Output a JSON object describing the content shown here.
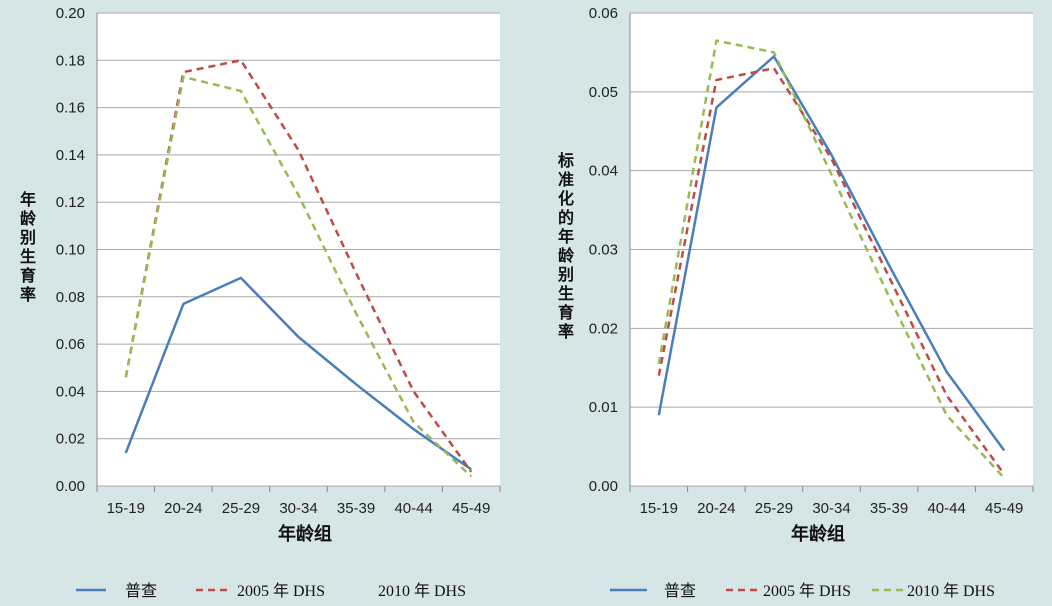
{
  "chart_data": [
    {
      "type": "line",
      "categories": [
        "15-19",
        "20-24",
        "25-29",
        "30-34",
        "35-39",
        "40-44",
        "45-49"
      ],
      "ylim": [
        0,
        0.2
      ],
      "yticks": [
        "0.00",
        "0.02",
        "0.04",
        "0.06",
        "0.08",
        "0.10",
        "0.12",
        "0.14",
        "0.16",
        "0.18",
        "0.20"
      ],
      "xlabel": "年龄组",
      "ylabel": "年龄别生育率",
      "grid": true,
      "legend_position": "bottom",
      "series": [
        {
          "name": "普查",
          "color": "#4a7ebb",
          "dash": "solid",
          "values": [
            0.014,
            0.077,
            0.088,
            0.063,
            0.043,
            0.024,
            0.007
          ]
        },
        {
          "name": "2005 年 DHS",
          "color": "#be4b48",
          "dash": "dashed",
          "values": [
            0.046,
            0.175,
            0.18,
            0.142,
            0.09,
            0.04,
            0.006
          ]
        },
        {
          "name": "2010 年 DHS",
          "color": "#98b954",
          "dash": "dashed",
          "values": [
            0.046,
            0.173,
            0.167,
            0.123,
            0.073,
            0.027,
            0.004
          ]
        }
      ]
    },
    {
      "type": "line",
      "categories": [
        "15-19",
        "20-24",
        "25-29",
        "30-34",
        "35-39",
        "40-44",
        "45-49"
      ],
      "ylim": [
        0,
        0.06
      ],
      "yticks": [
        "0.00",
        "0.01",
        "0.02",
        "0.03",
        "0.04",
        "0.05",
        "0.06"
      ],
      "xlabel": "年龄组",
      "ylabel": "标准化的年龄别生育率",
      "grid": true,
      "legend_position": "bottom",
      "series": [
        {
          "name": "普查",
          "color": "#4a7ebb",
          "dash": "solid",
          "values": [
            0.009,
            0.048,
            0.0545,
            0.042,
            0.028,
            0.0145,
            0.0045
          ]
        },
        {
          "name": "2005 年 DHS",
          "color": "#be4b48",
          "dash": "dashed",
          "values": [
            0.014,
            0.0515,
            0.053,
            0.0415,
            0.0265,
            0.0115,
            0.0015
          ]
        },
        {
          "name": "2010 年 DHS",
          "color": "#98b954",
          "dash": "dashed",
          "values": [
            0.0155,
            0.0565,
            0.055,
            0.0395,
            0.024,
            0.009,
            0.001
          ]
        }
      ]
    }
  ]
}
